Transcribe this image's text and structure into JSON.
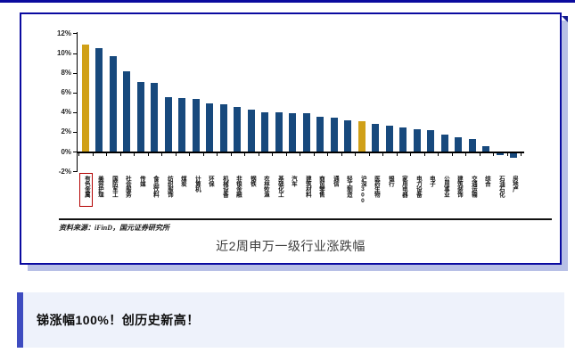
{
  "page": {
    "top_line_color": "#0a0a9e",
    "background": "#ffffff"
  },
  "chart_panel": {
    "border_color": "#0a0aa0",
    "shadow_color": "#b8c0e6",
    "source_note": "资料来源：iFinD，国元证券研究所",
    "caption": "近2周申万一级行业涨跌幅"
  },
  "chart_data": {
    "type": "bar",
    "title": "近2周申万一级行业涨跌幅",
    "xlabel": "",
    "ylabel": "",
    "ylim": [
      -2,
      12
    ],
    "grid": false,
    "legend": "none",
    "bar_color": "#17497d",
    "highlight_color": "#d0a018",
    "highlight_indices": [
      0,
      20
    ],
    "red_box_index": 0,
    "y_ticks": [
      {
        "label": "12%",
        "value": 12
      },
      {
        "label": "10%",
        "value": 10
      },
      {
        "label": "8%",
        "value": 8
      },
      {
        "label": "6%",
        "value": 6
      },
      {
        "label": "4%",
        "value": 4
      },
      {
        "label": "2%",
        "value": 2
      },
      {
        "label": "0%",
        "value": 0
      },
      {
        "label": "-2%",
        "value": -2
      }
    ],
    "categories": [
      "有色金属",
      "美容护理",
      "国防军工",
      "社会服务",
      "传媒",
      "食品饮料",
      "纺织服饰",
      "煤炭",
      "计算机",
      "环保",
      "机械设备",
      "非银金融",
      "钢铁",
      "农林牧渔",
      "基础化工",
      "汽车",
      "建筑材料",
      "商贸零售",
      "通信",
      "轻工制造",
      "沪深300",
      "医药生物",
      "银行",
      "家用电器",
      "电力设备",
      "电子",
      "公用事业",
      "建筑装饰",
      "交通运输",
      "综合",
      "石油石化",
      "房地产"
    ],
    "values": [
      10.9,
      10.5,
      9.7,
      8.1,
      7.1,
      7.0,
      5.5,
      5.4,
      5.3,
      4.9,
      4.8,
      4.5,
      4.25,
      4.0,
      3.95,
      3.9,
      3.85,
      3.5,
      3.45,
      3.2,
      3.05,
      2.85,
      2.6,
      2.4,
      2.3,
      2.15,
      1.75,
      1.45,
      1.3,
      0.5,
      -0.15,
      -0.45
    ]
  },
  "headline": {
    "text": "锑涨幅100%！创历史新高！",
    "accent_color": "#3e4cc0",
    "background": "#eef2fb"
  }
}
